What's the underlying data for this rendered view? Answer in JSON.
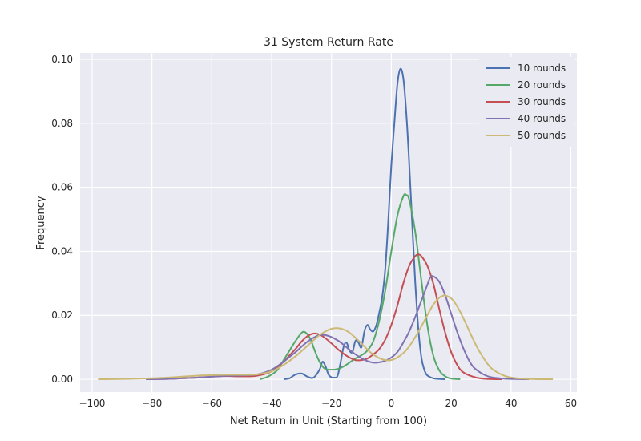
{
  "chart_data": {
    "type": "line",
    "title": "31 System Return Rate",
    "xlabel": "Net Return in Unit (Starting from 100)",
    "ylabel": "Frequency",
    "xlim": [
      -104,
      62
    ],
    "ylim": [
      -0.004,
      0.102
    ],
    "x_ticks": [
      -100,
      -80,
      -60,
      -40,
      -20,
      0,
      20,
      40,
      60
    ],
    "y_ticks": [
      0.0,
      0.02,
      0.04,
      0.06,
      0.08,
      0.1
    ],
    "x_tick_labels": [
      "−100",
      "−80",
      "−60",
      "−40",
      "−20",
      "0",
      "20",
      "40",
      "60"
    ],
    "y_tick_labels": [
      "0.00",
      "0.02",
      "0.04",
      "0.06",
      "0.08",
      "0.10"
    ],
    "grid": true,
    "legend_position": "top-right",
    "series": [
      {
        "name": "10 rounds",
        "color": "#4c72b0",
        "x": [
          -36,
          -34,
          -32,
          -30,
          -28,
          -26,
          -24,
          -23,
          -22,
          -21,
          -20,
          -19,
          -18,
          -17,
          -16,
          -15,
          -14,
          -13,
          -12,
          -11,
          -10,
          -9,
          -8,
          -7,
          -6,
          -5,
          -4,
          -3,
          -2,
          -1,
          0,
          1,
          2,
          3,
          4,
          5,
          6,
          7,
          8,
          9,
          10,
          11,
          12,
          14,
          16,
          18
        ],
        "y": [
          0.0,
          0.0003,
          0.0015,
          0.0018,
          0.0008,
          0.0005,
          0.003,
          0.0055,
          0.004,
          0.0015,
          0.0006,
          0.0005,
          0.001,
          0.005,
          0.01,
          0.0115,
          0.009,
          0.0085,
          0.012,
          0.0115,
          0.01,
          0.015,
          0.017,
          0.0155,
          0.015,
          0.017,
          0.021,
          0.026,
          0.035,
          0.05,
          0.067,
          0.08,
          0.092,
          0.097,
          0.094,
          0.083,
          0.067,
          0.048,
          0.03,
          0.016,
          0.007,
          0.003,
          0.0012,
          0.0003,
          0.0001,
          0.0
        ]
      },
      {
        "name": "20 rounds",
        "color": "#55a868",
        "x": [
          -44,
          -42,
          -40,
          -38,
          -36,
          -34,
          -32,
          -30,
          -29,
          -28,
          -27,
          -26,
          -25,
          -24,
          -23,
          -22,
          -20,
          -18,
          -16,
          -14,
          -12,
          -10,
          -8,
          -6,
          -4,
          -2,
          0,
          2,
          4,
          5,
          6,
          8,
          10,
          12,
          14,
          16,
          18,
          20,
          23
        ],
        "y": [
          0.0,
          0.0005,
          0.0015,
          0.003,
          0.006,
          0.009,
          0.012,
          0.0145,
          0.0148,
          0.014,
          0.0125,
          0.01,
          0.0075,
          0.0055,
          0.004,
          0.0032,
          0.003,
          0.0032,
          0.004,
          0.0052,
          0.0065,
          0.0075,
          0.009,
          0.012,
          0.0185,
          0.028,
          0.04,
          0.051,
          0.0572,
          0.0576,
          0.056,
          0.046,
          0.031,
          0.017,
          0.0075,
          0.0028,
          0.0009,
          0.0002,
          0.0
        ]
      },
      {
        "name": "30 rounds",
        "color": "#c44e52",
        "x": [
          -82,
          -75,
          -70,
          -65,
          -60,
          -55,
          -50,
          -45,
          -40,
          -36,
          -34,
          -32,
          -30,
          -28,
          -26,
          -24,
          -22,
          -20,
          -18,
          -16,
          -14,
          -12,
          -10,
          -8,
          -6,
          -4,
          -2,
          0,
          2,
          4,
          6,
          8,
          9,
          10,
          12,
          14,
          16,
          18,
          20,
          22,
          24,
          28,
          32,
          37
        ],
        "y": [
          0.0,
          0.0001,
          0.0003,
          0.0005,
          0.0008,
          0.001,
          0.0009,
          0.0011,
          0.0025,
          0.0055,
          0.0075,
          0.0095,
          0.0118,
          0.0135,
          0.0143,
          0.014,
          0.0128,
          0.0112,
          0.0095,
          0.008,
          0.0068,
          0.006,
          0.006,
          0.0065,
          0.0078,
          0.0095,
          0.0125,
          0.017,
          0.023,
          0.03,
          0.0355,
          0.0385,
          0.039,
          0.0385,
          0.0355,
          0.03,
          0.022,
          0.0145,
          0.0085,
          0.0045,
          0.0022,
          0.0006,
          0.0001,
          0.0
        ]
      },
      {
        "name": "40 rounds",
        "color": "#8172b2",
        "x": [
          -82,
          -75,
          -70,
          -65,
          -60,
          -55,
          -50,
          -45,
          -40,
          -36,
          -34,
          -32,
          -30,
          -28,
          -26,
          -24,
          -22,
          -20,
          -18,
          -16,
          -14,
          -12,
          -10,
          -8,
          -6,
          -4,
          -2,
          0,
          2,
          4,
          6,
          8,
          10,
          12,
          13,
          14,
          16,
          18,
          20,
          22,
          24,
          26,
          28,
          32,
          36,
          40,
          46
        ],
        "y": [
          0.0,
          0.0001,
          0.0003,
          0.0005,
          0.0008,
          0.0011,
          0.0012,
          0.0015,
          0.003,
          0.0055,
          0.007,
          0.0085,
          0.0102,
          0.0118,
          0.013,
          0.0138,
          0.0138,
          0.0132,
          0.0122,
          0.0108,
          0.0092,
          0.0078,
          0.0066,
          0.0057,
          0.0052,
          0.0053,
          0.0058,
          0.0068,
          0.0085,
          0.0115,
          0.015,
          0.0195,
          0.0245,
          0.0295,
          0.0318,
          0.0322,
          0.0305,
          0.0262,
          0.0205,
          0.0148,
          0.0098,
          0.0058,
          0.0033,
          0.001,
          0.0003,
          0.0001,
          0.0
        ]
      },
      {
        "name": "50 rounds",
        "color": "#ccb974",
        "x": [
          -98,
          -90,
          -85,
          -80,
          -75,
          -70,
          -65,
          -60,
          -55,
          -50,
          -45,
          -40,
          -36,
          -32,
          -28,
          -26,
          -24,
          -22,
          -20,
          -18,
          -16,
          -14,
          -12,
          -10,
          -8,
          -6,
          -4,
          -2,
          0,
          2,
          4,
          6,
          8,
          10,
          12,
          14,
          16,
          17,
          18,
          20,
          22,
          24,
          26,
          28,
          30,
          32,
          34,
          38,
          42,
          46,
          50,
          54
        ],
        "y": [
          0.0,
          0.0001,
          0.0002,
          0.0003,
          0.0005,
          0.0008,
          0.0011,
          0.0013,
          0.0014,
          0.0014,
          0.0015,
          0.0025,
          0.0045,
          0.0072,
          0.0105,
          0.0122,
          0.0138,
          0.015,
          0.0158,
          0.016,
          0.0156,
          0.0146,
          0.013,
          0.0112,
          0.0093,
          0.0077,
          0.0066,
          0.006,
          0.006,
          0.0068,
          0.0082,
          0.0103,
          0.0132,
          0.0165,
          0.02,
          0.0233,
          0.0255,
          0.026,
          0.0262,
          0.0253,
          0.0228,
          0.0192,
          0.0152,
          0.0112,
          0.0078,
          0.005,
          0.003,
          0.001,
          0.0003,
          0.0001,
          0.0,
          0.0
        ]
      }
    ]
  }
}
